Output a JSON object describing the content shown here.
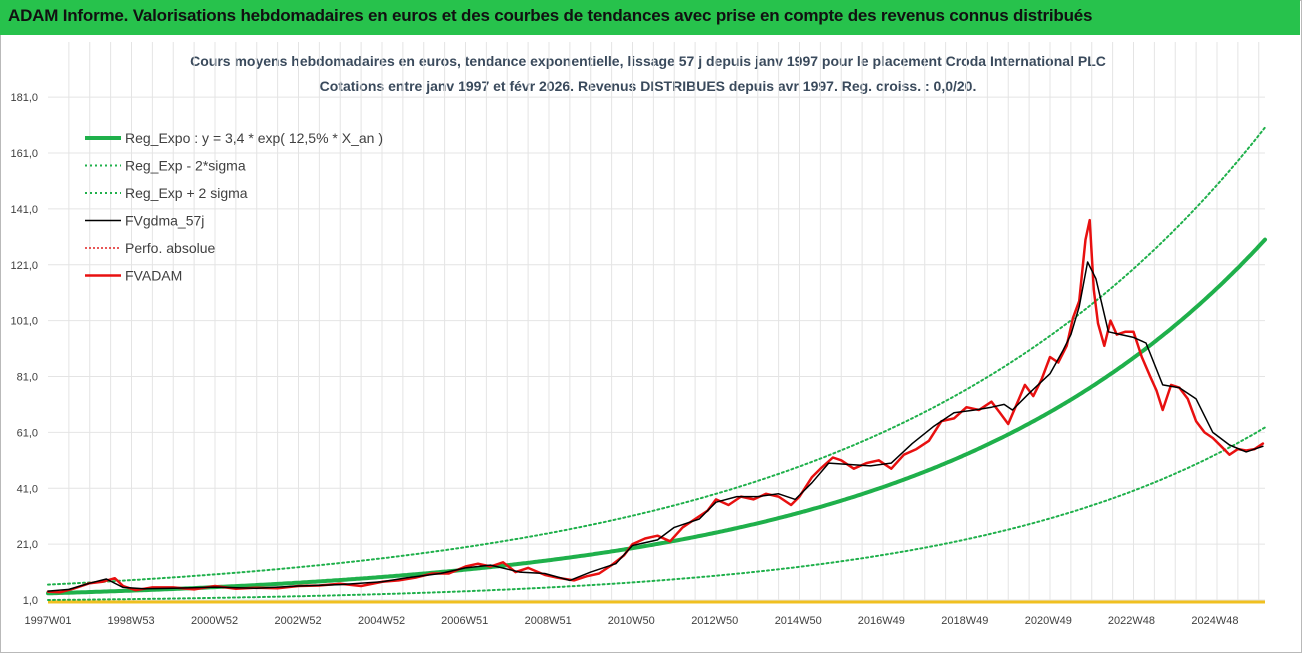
{
  "banner": {
    "title": "ADAM Informe. Valorisations hebdomadaires en euros et des courbes de tendances avec prise en compte des revenus connus distribués"
  },
  "colors": {
    "banner_bg": "#27c24c",
    "reg_expo": "#1fb04b",
    "sigma_bands": "#1fb04b",
    "fvgdma": "#000000",
    "perfo": "#e02020",
    "fvadam": "#e81010",
    "grid": "#e4e4e4",
    "baseline": "#f0c020"
  },
  "chart_data": {
    "type": "line",
    "title": "Cours moyens hebdomadaires en euros, tendance exponentielle, lissage 57 j depuis janv 1997 pour le placement Croda International PLC",
    "subtitle": "Cotations entre janv 1997 et févr 2026. Revenus DISTRIBUES depuis avr 1997. Reg. croiss. : 0,0/20.",
    "xlabel": "",
    "ylabel": "",
    "ylim": [
      1.0,
      190.0
    ],
    "xlim": [
      1997.0,
      2026.15
    ],
    "grid": true,
    "legend_position": "top-left",
    "y_ticks": [
      "1,0",
      "21,0",
      "41,0",
      "61,0",
      "81,0",
      "101,0",
      "121,0",
      "141,0",
      "161,0",
      "181,0"
    ],
    "y_tick_values": [
      1,
      21,
      41,
      61,
      81,
      101,
      121,
      141,
      161,
      181
    ],
    "x_ticks": [
      "1997W01",
      "1998W53",
      "2000W52",
      "2002W52",
      "2004W52",
      "2006W51",
      "2008W51",
      "2010W50",
      "2012W50",
      "2014W50",
      "2016W49",
      "2018W49",
      "2020W49",
      "2022W48",
      "2024W48"
    ],
    "x_tick_values": [
      1997.0,
      1998.99,
      2000.99,
      2002.99,
      2004.99,
      2006.98,
      2008.98,
      2010.97,
      2012.97,
      2014.97,
      2016.96,
      2018.96,
      2020.96,
      2022.95,
      2024.95
    ],
    "series": [
      {
        "name": "Reg_Expo : y = 3,4 * exp( 12,5% *  X_an )",
        "style": "solid-thick",
        "formula": {
          "a": 3.4,
          "rate": 0.125,
          "x0": 1997.0
        }
      },
      {
        "name": "Reg_Exp - 2*sigma",
        "style": "dotted",
        "formula": {
          "a": 1.0,
          "rate": 0.142,
          "x0": 1997.0
        }
      },
      {
        "name": "Reg_Exp + 2 sigma",
        "style": "dotted",
        "formula": {
          "a": 6.5,
          "rate": 0.112,
          "x0": 1997.0
        }
      },
      {
        "name": "FVgdma_57j",
        "style": "solid-thin",
        "x": [
          1997.0,
          1997.5,
          1998.0,
          1998.4,
          1998.8,
          1999.3,
          2000.0,
          2001.0,
          2002.0,
          2003.0,
          2004.0,
          2005.0,
          2005.6,
          2006.4,
          2007.0,
          2007.6,
          2008.3,
          2008.9,
          2009.5,
          2010.0,
          2010.6,
          2011.0,
          2011.6,
          2012.0,
          2012.6,
          2013.0,
          2013.5,
          2014.0,
          2014.5,
          2014.9,
          2015.3,
          2015.7,
          2016.2,
          2016.7,
          2017.2,
          2017.7,
          2018.2,
          2018.7,
          2019.2,
          2019.6,
          2019.9,
          2020.1,
          2020.5,
          2021.0,
          2021.3,
          2021.5,
          2021.7,
          2021.9,
          2022.1,
          2022.4,
          2022.7,
          2023.0,
          2023.3,
          2023.7,
          2024.1,
          2024.5,
          2024.9,
          2025.3,
          2025.7,
          2026.1
        ],
        "y": [
          4.2,
          4.8,
          7.0,
          8.5,
          5.5,
          5.0,
          5.2,
          5.6,
          5.2,
          6.0,
          6.5,
          7.5,
          9.0,
          10.5,
          12.5,
          13.5,
          11.0,
          10.5,
          8.0,
          11.0,
          14.0,
          20.5,
          22.5,
          27.0,
          30.0,
          36.0,
          38.0,
          38.0,
          39.0,
          37.0,
          43.0,
          50.0,
          49.5,
          49.0,
          50.0,
          57.0,
          63.0,
          68.0,
          69.0,
          70.0,
          71.0,
          69.0,
          75.0,
          82.0,
          90.0,
          96.0,
          106.0,
          122.0,
          116.0,
          97.0,
          96.0,
          95.0,
          93.0,
          78.0,
          77.0,
          73.0,
          61.0,
          56.5,
          54.0,
          56.0
        ]
      },
      {
        "name": "Perfo. absolue",
        "style": "dotted-red",
        "same_as": "FVADAM"
      },
      {
        "name": "FVADAM",
        "style": "solid-thick-red",
        "x": [
          1997.0,
          1997.3,
          1997.6,
          1998.0,
          1998.3,
          1998.6,
          1998.8,
          1999.1,
          1999.5,
          2000.0,
          2000.5,
          2001.0,
          2001.5,
          2002.0,
          2002.5,
          2003.0,
          2003.5,
          2004.0,
          2004.5,
          2005.0,
          2005.4,
          2005.8,
          2006.2,
          2006.6,
          2007.0,
          2007.3,
          2007.6,
          2007.9,
          2008.2,
          2008.5,
          2008.9,
          2009.2,
          2009.6,
          2009.9,
          2010.2,
          2010.5,
          2010.8,
          2011.0,
          2011.3,
          2011.6,
          2011.9,
          2012.2,
          2012.5,
          2012.8,
          2013.0,
          2013.3,
          2013.6,
          2013.9,
          2014.2,
          2014.5,
          2014.8,
          2015.0,
          2015.3,
          2015.5,
          2015.8,
          2016.0,
          2016.3,
          2016.6,
          2016.9,
          2017.2,
          2017.5,
          2017.8,
          2018.1,
          2018.4,
          2018.7,
          2019.0,
          2019.3,
          2019.6,
          2019.8,
          2020.0,
          2020.2,
          2020.4,
          2020.6,
          2020.8,
          2021.0,
          2021.2,
          2021.4,
          2021.55,
          2021.7,
          2021.85,
          2021.95,
          2022.05,
          2022.15,
          2022.3,
          2022.45,
          2022.6,
          2022.8,
          2023.0,
          2023.2,
          2023.4,
          2023.55,
          2023.7,
          2023.9,
          2024.1,
          2024.3,
          2024.5,
          2024.7,
          2024.9,
          2025.1,
          2025.3,
          2025.5,
          2025.7,
          2025.9,
          2026.1
        ],
        "y": [
          4.0,
          3.8,
          5.0,
          7.0,
          7.5,
          8.8,
          6.0,
          4.5,
          5.5,
          5.5,
          4.8,
          6.0,
          5.0,
          5.4,
          5.2,
          6.0,
          6.2,
          6.8,
          6.0,
          7.5,
          8.0,
          9.0,
          10.5,
          10.5,
          13.0,
          14.0,
          13.0,
          14.5,
          11.0,
          12.5,
          10.0,
          9.0,
          8.0,
          9.5,
          10.5,
          13.5,
          17.0,
          21.0,
          23.0,
          24.0,
          22.0,
          27.0,
          30.0,
          33.0,
          37.0,
          35.0,
          38.0,
          37.0,
          39.0,
          38.0,
          35.0,
          38.0,
          45.0,
          48.0,
          52.0,
          51.0,
          48.0,
          50.0,
          51.0,
          48.0,
          53.0,
          55.0,
          58.0,
          65.0,
          66.0,
          70.0,
          69.0,
          72.0,
          68.0,
          64.0,
          71.0,
          78.0,
          74.0,
          80.0,
          88.0,
          86.0,
          92.0,
          102.0,
          108.0,
          130.0,
          137.0,
          112.0,
          100.0,
          92.0,
          101.0,
          96.0,
          97.0,
          97.0,
          88.0,
          81.0,
          76.0,
          69.0,
          78.0,
          77.0,
          73.0,
          65.0,
          61.0,
          59.0,
          56.0,
          53.0,
          55.0,
          54.5,
          55.0,
          57.0
        ]
      }
    ]
  }
}
